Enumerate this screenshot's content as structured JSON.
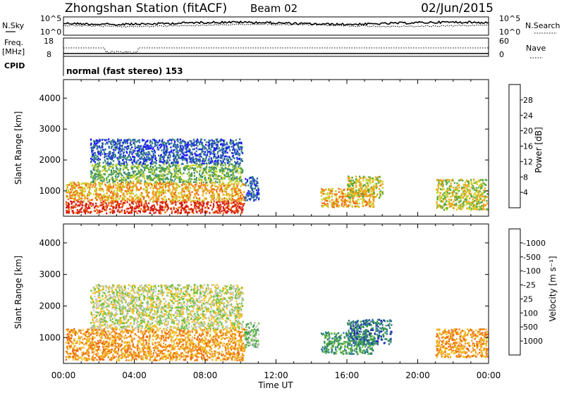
{
  "header": {
    "title": "Zhongshan Station (fitACF)",
    "beam": "Beam 02",
    "date": "02/Jun/2015"
  },
  "top_panels": {
    "nsky_label": "N.Sky",
    "nsearch_label": "N.Search",
    "nsky_ticks": [
      "10^5",
      "10^0"
    ],
    "nsearch_ticks": [
      "10^5",
      "10^0"
    ],
    "freq_label_1": "Freq.",
    "freq_label_2": "[MHz]",
    "freq_ticks": [
      "18",
      "8"
    ],
    "nave_label": "Nave",
    "nave_ticks": [
      "60",
      "0"
    ],
    "cpid_label": "CPID",
    "cpid_text": "normal (fast stereo) 153"
  },
  "chart_data": [
    {
      "type": "heatmap",
      "name": "power-panel",
      "ylabel": "Slant Range [km]",
      "xlabel": "",
      "ylim": [
        180,
        4600
      ],
      "yticks": [
        1000,
        2000,
        3000,
        4000
      ],
      "xticks": [
        "00:00",
        "04:00",
        "08:00",
        "12:00",
        "16:00",
        "20:00",
        "00:00"
      ],
      "colorbar": {
        "label": "Power [dB]",
        "ticks": [
          "4",
          "8",
          "12",
          "16",
          "20",
          "24",
          "28"
        ],
        "colors": [
          "#1a1aff",
          "#2a5fb0",
          "#3d8a78",
          "#56a83e",
          "#c9d22a",
          "#f1a21a",
          "#ef6a10",
          "#d41a10"
        ]
      },
      "regions": [
        {
          "t0": 0.1,
          "t1": 10.2,
          "r0": 300,
          "r1": 700,
          "level": 7
        },
        {
          "t0": 0.1,
          "t1": 10.2,
          "r0": 700,
          "r1": 1300,
          "level": 5
        },
        {
          "t0": 1.5,
          "t1": 10.1,
          "r0": 1300,
          "r1": 1900,
          "level": 3
        },
        {
          "t0": 1.5,
          "t1": 10.1,
          "r0": 1900,
          "r1": 2700,
          "level": 1
        },
        {
          "t0": 10.2,
          "t1": 11.0,
          "r0": 700,
          "r1": 1500,
          "level": 1
        },
        {
          "t0": 14.5,
          "t1": 17.5,
          "r0": 500,
          "r1": 1100,
          "level": 5
        },
        {
          "t0": 16.0,
          "t1": 18.0,
          "r0": 800,
          "r1": 1500,
          "level": 4
        },
        {
          "t0": 21.0,
          "t1": 23.9,
          "r0": 400,
          "r1": 1400,
          "level": 4
        }
      ]
    },
    {
      "type": "heatmap",
      "name": "velocity-panel",
      "ylabel": "Slant Range [km]",
      "xlabel": "Time UT",
      "ylim": [
        180,
        4600
      ],
      "yticks": [
        1000,
        2000,
        3000,
        4000
      ],
      "xticks": [
        "00:00",
        "04:00",
        "08:00",
        "12:00",
        "16:00",
        "20:00",
        "00:00"
      ],
      "colorbar": {
        "label": "Velocity [m s⁻¹]",
        "ticks": [
          "1000",
          "500",
          "100",
          "25",
          "-25",
          "-100",
          "-500",
          "-1000"
        ],
        "colors": [
          "#2030b0",
          "#2e7a8a",
          "#3a9a4a",
          "#6cc040",
          "#c8c8c0",
          "#f0c020",
          "#f09a20",
          "#ee6a10",
          "#e01010"
        ]
      },
      "regions": [
        {
          "t0": 0.1,
          "t1": 10.2,
          "r0": 300,
          "r1": 1300,
          "level": 6
        },
        {
          "t0": 1.5,
          "t1": 10.1,
          "r0": 1300,
          "r1": 2700,
          "level": 4
        },
        {
          "t0": 10.2,
          "t1": 11.0,
          "r0": 700,
          "r1": 1500,
          "level": 3
        },
        {
          "t0": 14.5,
          "t1": 17.5,
          "r0": 500,
          "r1": 1200,
          "level": 2
        },
        {
          "t0": 16.0,
          "t1": 18.5,
          "r0": 800,
          "r1": 1600,
          "level": 1
        },
        {
          "t0": 21.0,
          "t1": 23.9,
          "r0": 400,
          "r1": 1300,
          "level": 6
        }
      ]
    }
  ]
}
